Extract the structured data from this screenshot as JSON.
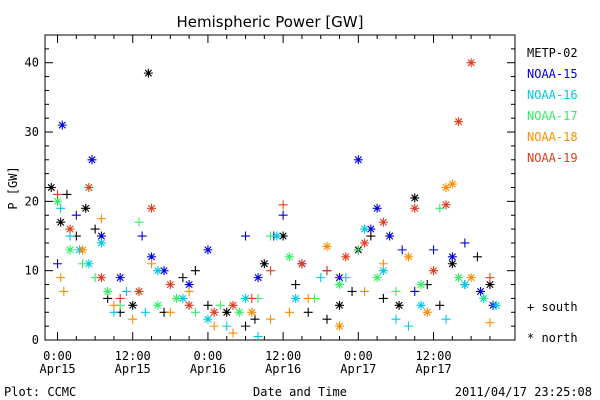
{
  "chart_data": {
    "type": "scatter",
    "title": "Hemispheric Power [GW]",
    "ylabel": "P [GW]",
    "xlabel": "Date and Time",
    "ylim": [
      0,
      44
    ],
    "yticks": [
      0,
      10,
      20,
      30,
      40
    ],
    "xlim": [
      "2011-04-14T22:00",
      "2011-04-18T01:00"
    ],
    "xticks": [
      {
        "time": "2011-04-15T00:00",
        "line1": "0:00",
        "line2": "Apr15"
      },
      {
        "time": "2011-04-15T12:00",
        "line1": "12:00",
        "line2": "Apr15"
      },
      {
        "time": "2011-04-16T00:00",
        "line1": "0:00",
        "line2": "Apr16"
      },
      {
        "time": "2011-04-16T12:00",
        "line1": "12:00",
        "line2": "Apr16"
      },
      {
        "time": "2011-04-17T00:00",
        "line1": "0:00",
        "line2": "Apr17"
      },
      {
        "time": "2011-04-17T12:00",
        "line1": "12:00",
        "line2": "Apr17"
      }
    ],
    "series": [
      {
        "name": "METP-02",
        "color": "#000000",
        "points": [
          [
            "2011-04-14T23:00",
            22,
            "n"
          ],
          [
            "2011-04-15T00:30",
            17,
            "n"
          ],
          [
            "2011-04-15T01:30",
            21,
            "s"
          ],
          [
            "2011-04-15T03:00",
            15,
            "s"
          ],
          [
            "2011-04-15T04:30",
            19,
            "n"
          ],
          [
            "2011-04-15T06:00",
            16,
            "s"
          ],
          [
            "2011-04-15T08:00",
            6,
            "s"
          ],
          [
            "2011-04-15T10:00",
            4,
            "s"
          ],
          [
            "2011-04-15T12:00",
            5,
            "n"
          ],
          [
            "2011-04-15T14:30",
            38.5,
            "n"
          ],
          [
            "2011-04-15T17:00",
            4,
            "s"
          ],
          [
            "2011-04-15T20:00",
            9,
            "s"
          ],
          [
            "2011-04-15T22:00",
            10,
            "s"
          ],
          [
            "2011-04-16T00:00",
            5,
            "s"
          ],
          [
            "2011-04-16T03:00",
            4,
            "n"
          ],
          [
            "2011-04-16T06:00",
            2,
            "s"
          ],
          [
            "2011-04-16T07:30",
            3,
            "s"
          ],
          [
            "2011-04-16T09:00",
            11,
            "n"
          ],
          [
            "2011-04-16T12:00",
            15,
            "n"
          ],
          [
            "2011-04-16T14:00",
            8,
            "s"
          ],
          [
            "2011-04-16T16:00",
            4,
            "s"
          ],
          [
            "2011-04-16T19:00",
            3,
            "s"
          ],
          [
            "2011-04-16T21:00",
            5,
            "n"
          ],
          [
            "2011-04-16T23:00",
            7,
            "s"
          ],
          [
            "2011-04-17T00:00",
            13,
            "n"
          ],
          [
            "2011-04-17T02:00",
            15,
            "s"
          ],
          [
            "2011-04-17T04:00",
            6,
            "s"
          ],
          [
            "2011-04-17T06:30",
            5,
            "n"
          ],
          [
            "2011-04-17T09:00",
            20.5,
            "n"
          ],
          [
            "2011-04-17T11:00",
            8,
            "s"
          ],
          [
            "2011-04-17T13:00",
            5,
            "s"
          ],
          [
            "2011-04-17T15:00",
            11,
            "n"
          ],
          [
            "2011-04-17T17:00",
            8,
            "s"
          ],
          [
            "2011-04-17T19:00",
            12,
            "s"
          ],
          [
            "2011-04-17T21:00",
            8,
            "n"
          ]
        ]
      },
      {
        "name": "NOAA-15",
        "color": "#0000dd",
        "points": [
          [
            "2011-04-15T00:00",
            11,
            "s"
          ],
          [
            "2011-04-15T00:45",
            31,
            "n"
          ],
          [
            "2011-04-15T03:00",
            18,
            "s"
          ],
          [
            "2011-04-15T05:30",
            26,
            "n"
          ],
          [
            "2011-04-15T07:00",
            15,
            "n"
          ],
          [
            "2011-04-15T10:00",
            9,
            "n"
          ],
          [
            "2011-04-15T13:30",
            15,
            "s"
          ],
          [
            "2011-04-15T15:00",
            12,
            "n"
          ],
          [
            "2011-04-15T17:00",
            10,
            "n"
          ],
          [
            "2011-04-15T21:00",
            8,
            "n"
          ],
          [
            "2011-04-16T00:00",
            13,
            "n"
          ],
          [
            "2011-04-16T06:00",
            15,
            "s"
          ],
          [
            "2011-04-16T08:00",
            9,
            "n"
          ],
          [
            "2011-04-16T10:30",
            15,
            "s"
          ],
          [
            "2011-04-16T12:00",
            18,
            "s"
          ],
          [
            "2011-04-16T15:00",
            11,
            "n"
          ],
          [
            "2011-04-16T19:00",
            10,
            "s"
          ],
          [
            "2011-04-16T21:00",
            9,
            "n"
          ],
          [
            "2011-04-17T00:00",
            26,
            "n"
          ],
          [
            "2011-04-17T02:00",
            16,
            "n"
          ],
          [
            "2011-04-17T03:00",
            19,
            "n"
          ],
          [
            "2011-04-17T05:00",
            15,
            "n"
          ],
          [
            "2011-04-17T07:00",
            13,
            "s"
          ],
          [
            "2011-04-17T09:00",
            7,
            "s"
          ],
          [
            "2011-04-17T12:00",
            13,
            "s"
          ],
          [
            "2011-04-17T15:00",
            12,
            "n"
          ],
          [
            "2011-04-17T17:00",
            14,
            "s"
          ],
          [
            "2011-04-17T19:30",
            7,
            "n"
          ],
          [
            "2011-04-17T21:30",
            5,
            "n"
          ]
        ]
      },
      {
        "name": "NOAA-16",
        "color": "#00c8e6",
        "points": [
          [
            "2011-04-15T00:30",
            19,
            "s"
          ],
          [
            "2011-04-15T02:00",
            15,
            "s"
          ],
          [
            "2011-04-15T03:30",
            13,
            "n"
          ],
          [
            "2011-04-15T05:00",
            11,
            "n"
          ],
          [
            "2011-04-15T07:00",
            14,
            "n"
          ],
          [
            "2011-04-15T09:00",
            4,
            "s"
          ],
          [
            "2011-04-15T11:00",
            7,
            "s"
          ],
          [
            "2011-04-15T14:00",
            4,
            "s"
          ],
          [
            "2011-04-15T16:00",
            10,
            "n"
          ],
          [
            "2011-04-15T20:00",
            6,
            "n"
          ],
          [
            "2011-04-16T00:00",
            3,
            "n"
          ],
          [
            "2011-04-16T03:00",
            2,
            "s"
          ],
          [
            "2011-04-16T06:00",
            6,
            "n"
          ],
          [
            "2011-04-16T08:00",
            0.5,
            "s"
          ],
          [
            "2011-04-16T11:00",
            15,
            "n"
          ],
          [
            "2011-04-16T14:00",
            6,
            "n"
          ],
          [
            "2011-04-16T18:00",
            9,
            "s"
          ],
          [
            "2011-04-16T22:00",
            9,
            "s"
          ],
          [
            "2011-04-17T01:00",
            16,
            "n"
          ],
          [
            "2011-04-17T04:00",
            10,
            "n"
          ],
          [
            "2011-04-17T06:00",
            3,
            "s"
          ],
          [
            "2011-04-17T08:00",
            2,
            "s"
          ],
          [
            "2011-04-17T10:00",
            5,
            "n"
          ],
          [
            "2011-04-17T14:00",
            3,
            "s"
          ],
          [
            "2011-04-17T17:00",
            8,
            "n"
          ],
          [
            "2011-04-17T20:00",
            6,
            "n"
          ],
          [
            "2011-04-17T22:00",
            5,
            "n"
          ]
        ]
      },
      {
        "name": "NOAA-17",
        "color": "#33ee66",
        "points": [
          [
            "2011-04-15T00:00",
            20,
            "n"
          ],
          [
            "2011-04-15T02:00",
            13,
            "n"
          ],
          [
            "2011-04-15T04:00",
            11,
            "s"
          ],
          [
            "2011-04-15T06:00",
            9,
            "s"
          ],
          [
            "2011-04-15T08:00",
            7,
            "n"
          ],
          [
            "2011-04-15T10:00",
            5,
            "s"
          ],
          [
            "2011-04-15T13:00",
            17,
            "s"
          ],
          [
            "2011-04-15T16:00",
            5,
            "n"
          ],
          [
            "2011-04-15T19:00",
            6,
            "n"
          ],
          [
            "2011-04-15T22:00",
            4,
            "s"
          ],
          [
            "2011-04-16T02:00",
            5,
            "s"
          ],
          [
            "2011-04-16T05:00",
            4,
            "n"
          ],
          [
            "2011-04-16T08:00",
            6,
            "s"
          ],
          [
            "2011-04-16T10:00",
            15,
            "s"
          ],
          [
            "2011-04-16T13:00",
            12,
            "n"
          ],
          [
            "2011-04-16T17:00",
            6,
            "s"
          ],
          [
            "2011-04-16T21:00",
            8,
            "n"
          ],
          [
            "2011-04-17T00:00",
            13,
            "s"
          ],
          [
            "2011-04-17T03:00",
            9,
            "n"
          ],
          [
            "2011-04-17T06:00",
            7,
            "s"
          ],
          [
            "2011-04-17T10:00",
            8,
            "n"
          ],
          [
            "2011-04-17T13:00",
            19,
            "s"
          ],
          [
            "2011-04-17T16:00",
            9,
            "n"
          ],
          [
            "2011-04-17T20:00",
            6,
            "s"
          ]
        ]
      },
      {
        "name": "NOAA-18",
        "color": "#ff8c00",
        "points": [
          [
            "2011-04-15T00:30",
            9,
            "s"
          ],
          [
            "2011-04-15T01:00",
            7,
            "s"
          ],
          [
            "2011-04-15T04:00",
            13,
            "n"
          ],
          [
            "2011-04-15T07:00",
            17.5,
            "s"
          ],
          [
            "2011-04-15T09:00",
            5,
            "s"
          ],
          [
            "2011-04-15T12:00",
            3,
            "s"
          ],
          [
            "2011-04-15T15:00",
            11,
            "s"
          ],
          [
            "2011-04-15T18:00",
            4,
            "s"
          ],
          [
            "2011-04-15T21:00",
            7,
            "s"
          ],
          [
            "2011-04-16T01:00",
            2,
            "s"
          ],
          [
            "2011-04-16T04:00",
            1,
            "s"
          ],
          [
            "2011-04-16T07:00",
            4,
            "n"
          ],
          [
            "2011-04-16T10:00",
            3,
            "s"
          ],
          [
            "2011-04-16T13:00",
            4,
            "s"
          ],
          [
            "2011-04-16T16:00",
            6,
            "s"
          ],
          [
            "2011-04-16T19:00",
            13.5,
            "n"
          ],
          [
            "2011-04-16T21:00",
            2,
            "n"
          ],
          [
            "2011-04-17T01:00",
            7,
            "s"
          ],
          [
            "2011-04-17T04:00",
            11,
            "s"
          ],
          [
            "2011-04-17T08:00",
            12,
            "n"
          ],
          [
            "2011-04-17T11:00",
            4,
            "n"
          ],
          [
            "2011-04-17T14:00",
            22,
            "n"
          ],
          [
            "2011-04-17T15:00",
            22.5,
            "n"
          ],
          [
            "2011-04-17T18:00",
            9,
            "n"
          ],
          [
            "2011-04-17T21:00",
            2.5,
            "s"
          ]
        ]
      },
      {
        "name": "NOAA-19",
        "color": "#e03c1e",
        "points": [
          [
            "2011-04-15T00:00",
            21,
            "s"
          ],
          [
            "2011-04-15T02:00",
            16,
            "n"
          ],
          [
            "2011-04-15T05:00",
            22,
            "n"
          ],
          [
            "2011-04-15T07:00",
            9,
            "n"
          ],
          [
            "2011-04-15T10:00",
            6,
            "s"
          ],
          [
            "2011-04-15T13:00",
            7,
            "n"
          ],
          [
            "2011-04-15T15:00",
            19,
            "n"
          ],
          [
            "2011-04-15T18:00",
            8,
            "n"
          ],
          [
            "2011-04-15T21:00",
            5,
            "n"
          ],
          [
            "2011-04-16T01:00",
            4,
            "n"
          ],
          [
            "2011-04-16T04:00",
            5,
            "n"
          ],
          [
            "2011-04-16T07:00",
            6,
            "s"
          ],
          [
            "2011-04-16T10:00",
            10,
            "s"
          ],
          [
            "2011-04-16T12:00",
            19.5,
            "s"
          ],
          [
            "2011-04-16T15:00",
            11,
            "n"
          ],
          [
            "2011-04-16T19:00",
            10,
            "s"
          ],
          [
            "2011-04-16T22:00",
            12,
            "n"
          ],
          [
            "2011-04-17T01:00",
            14,
            "n"
          ],
          [
            "2011-04-17T04:00",
            17,
            "n"
          ],
          [
            "2011-04-17T09:00",
            19,
            "n"
          ],
          [
            "2011-04-17T12:00",
            10,
            "n"
          ],
          [
            "2011-04-17T14:00",
            19.5,
            "n"
          ],
          [
            "2011-04-17T16:00",
            31.5,
            "n"
          ],
          [
            "2011-04-17T18:00",
            40,
            "n"
          ],
          [
            "2011-04-17T21:00",
            9,
            "s"
          ]
        ]
      }
    ],
    "legend": {
      "position": "right",
      "symbols": [
        {
          "glyph": "+",
          "label": "south"
        },
        {
          "glyph": "*",
          "label": "north"
        }
      ]
    }
  },
  "footer": {
    "left": "Plot: CCMC",
    "right": "2011/04/17 23:25:08"
  }
}
